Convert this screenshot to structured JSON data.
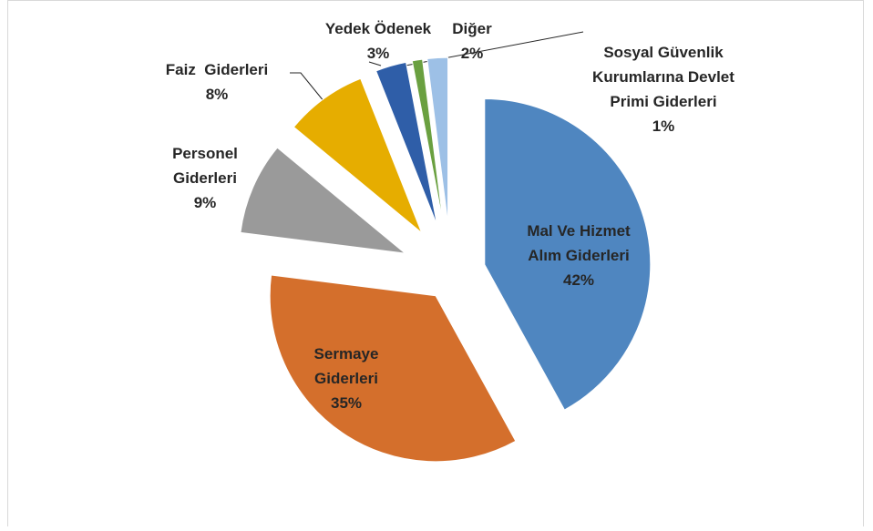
{
  "chart_data": {
    "type": "pie",
    "categories": [
      "Mal Ve Hizmet Alım Giderleri",
      "Sermaye Giderleri",
      "Personel Giderleri",
      "Faiz  Giderleri",
      "Yedek Ödenek",
      "Sosyal Güvenlik Kurumlarına Devlet Primi Giderleri",
      "Diğer"
    ],
    "values": [
      42,
      35,
      9,
      8,
      3,
      1,
      2
    ],
    "value_labels": [
      "42%",
      "35%",
      "9%",
      "8%",
      "3%",
      "1%",
      "2%"
    ],
    "colors": [
      "#4f86c0",
      "#d46f2c",
      "#9a9a9a",
      "#e6ad00",
      "#2f5ea8",
      "#6aa040",
      "#9dc0e6"
    ]
  }
}
